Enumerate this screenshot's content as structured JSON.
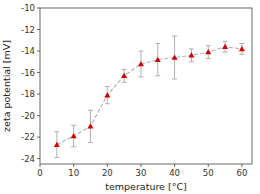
{
  "chart_data": {
    "type": "line",
    "xlabel": "temperature [°C]",
    "ylabel": "zeta potential [mV]",
    "x": [
      5,
      10,
      15,
      20,
      25,
      30,
      35,
      40,
      45,
      50,
      55,
      60
    ],
    "color": "#b0b0b0",
    "series": [
      {
        "color": "#cc0000",
        "marker": "triangle",
        "line_style": "dashed",
        "values": [
          -22.7,
          -21.9,
          -21.0,
          -18.1,
          -16.3,
          -15.2,
          -14.8,
          -14.6,
          -14.4,
          -14.1,
          -13.6,
          -13.8
        ],
        "yerr": [
          1.2,
          1.0,
          1.5,
          0.8,
          0.6,
          1.2,
          1.5,
          2.0,
          0.6,
          0.6,
          0.5,
          0.5
        ]
      }
    ],
    "xlim": [
      0,
      63
    ],
    "ylim": [
      -24.5,
      -10
    ],
    "xticks": [
      0,
      10,
      20,
      30,
      40,
      50,
      60
    ],
    "yticks": [
      -24,
      -22,
      -20,
      -18,
      -16,
      -14,
      -12,
      -10
    ],
    "grid": false
  }
}
